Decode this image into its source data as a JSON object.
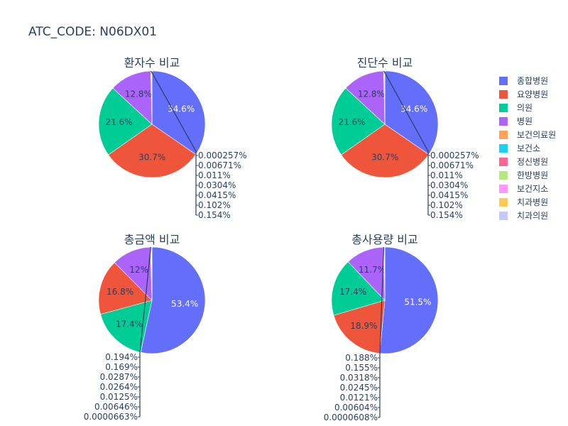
{
  "title": "ATC_CODE: N06DX01",
  "colors": [
    "#636efa",
    "#EF553B",
    "#00cc96",
    "#ab63fa",
    "#FFA15A",
    "#19d3f3",
    "#FF6692",
    "#B6E880",
    "#FF97FF",
    "#FECB52",
    "#c6c9f7"
  ],
  "legend": [
    "종합병원",
    "요양병원",
    "의원",
    "병원",
    "보건의료원",
    "보건소",
    "정신병원",
    "한방병원",
    "보건지소",
    "치과병원",
    "치과의원"
  ],
  "chart_data": [
    {
      "type": "pie",
      "title": "환자수 비교",
      "categories": [
        "종합병원",
        "요양병원",
        "의원",
        "병원",
        "보건의료원",
        "보건소",
        "정신병원",
        "한방병원",
        "보건지소",
        "치과병원",
        "치과의원"
      ],
      "values": [
        34.6,
        30.7,
        21.6,
        12.8,
        0.154,
        0.102,
        0.0415,
        0.0304,
        0.011,
        0.00671,
        0.000257
      ],
      "labels": [
        "34.6%",
        "30.7%",
        "21.6%",
        "12.8%",
        "0.154%",
        "0.102%",
        "0.0415%",
        "0.0304%",
        "0.011%",
        "0.00671%",
        "0.000257%"
      ]
    },
    {
      "type": "pie",
      "title": "진단수 비교",
      "categories": [
        "종합병원",
        "요양병원",
        "의원",
        "병원",
        "보건의료원",
        "보건소",
        "정신병원",
        "한방병원",
        "보건지소",
        "치과병원",
        "치과의원"
      ],
      "values": [
        34.6,
        30.7,
        21.6,
        12.8,
        0.154,
        0.102,
        0.0415,
        0.0304,
        0.011,
        0.00671,
        0.000257
      ],
      "labels": [
        "34.6%",
        "30.7%",
        "21.6%",
        "12.8%",
        "0.154%",
        "0.102%",
        "0.0415%",
        "0.0304%",
        "0.011%",
        "0.00671%",
        "0.000257%"
      ]
    },
    {
      "type": "pie",
      "title": "총금액 비교",
      "categories": [
        "종합병원",
        "의원",
        "요양병원",
        "병원",
        "보건의료원",
        "보건소",
        "정신병원",
        "한방병원",
        "보건지소",
        "치과병원",
        "치과의원"
      ],
      "values": [
        53.4,
        17.4,
        16.8,
        12,
        0.194,
        0.169,
        0.0287,
        0.0264,
        0.0125,
        0.00646,
        6.63e-05
      ],
      "labels": [
        "53.4%",
        "17.4%",
        "16.8%",
        "12%",
        "0.194%",
        "0.169%",
        "0.0287%",
        "0.0264%",
        "0.0125%",
        "0.00646%",
        "0.0000663%"
      ]
    },
    {
      "type": "pie",
      "title": "총사용량 비교",
      "categories": [
        "종합병원",
        "요양병원",
        "의원",
        "병원",
        "보건의료원",
        "보건소",
        "정신병원",
        "한방병원",
        "보건지소",
        "치과병원",
        "치과의원"
      ],
      "values": [
        51.5,
        18.9,
        17.4,
        11.7,
        0.188,
        0.155,
        0.0318,
        0.0245,
        0.0121,
        0.00604,
        6.08e-05
      ],
      "labels": [
        "51.5%",
        "18.9%",
        "17.4%",
        "11.7%",
        "0.188%",
        "0.155%",
        "0.0318%",
        "0.0245%",
        "0.0121%",
        "0.00604%",
        "0.0000608%"
      ]
    }
  ]
}
